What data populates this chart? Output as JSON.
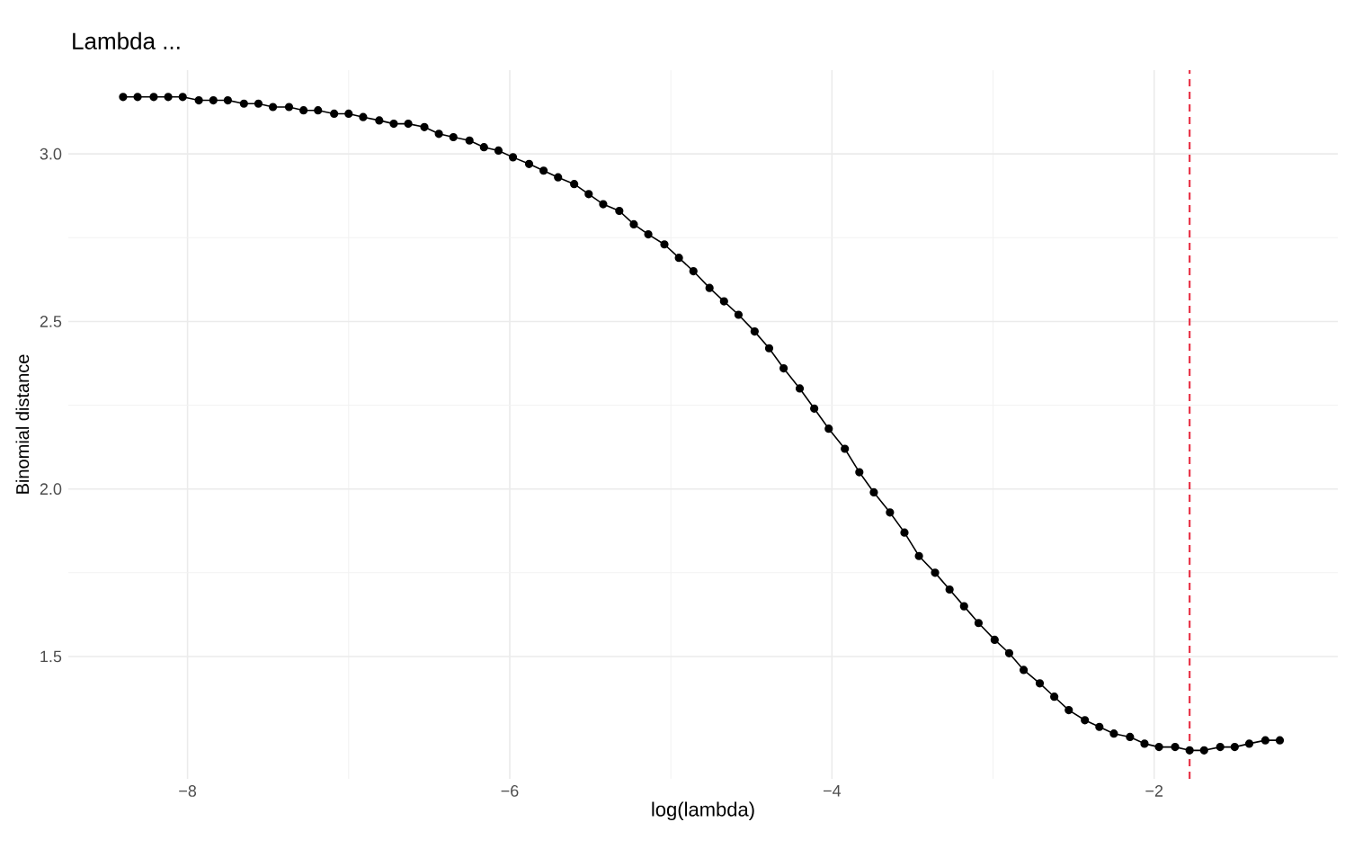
{
  "chart_data": {
    "type": "line",
    "title": "Lambda ...",
    "xlabel": "log(lambda)",
    "ylabel": "Binomial distance",
    "x": [
      -8.4,
      -8.31,
      -8.21,
      -8.12,
      -8.03,
      -7.93,
      -7.84,
      -7.75,
      -7.65,
      -7.56,
      -7.47,
      -7.37,
      -7.28,
      -7.19,
      -7.09,
      -7.0,
      -6.91,
      -6.81,
      -6.72,
      -6.63,
      -6.53,
      -6.44,
      -6.35,
      -6.25,
      -6.16,
      -6.07,
      -5.98,
      -5.88,
      -5.79,
      -5.7,
      -5.6,
      -5.51,
      -5.42,
      -5.32,
      -5.23,
      -5.14,
      -5.04,
      -4.95,
      -4.86,
      -4.76,
      -4.67,
      -4.58,
      -4.48,
      -4.39,
      -4.3,
      -4.2,
      -4.11,
      -4.02,
      -3.92,
      -3.83,
      -3.74,
      -3.64,
      -3.55,
      -3.46,
      -3.36,
      -3.27,
      -3.18,
      -3.09,
      -2.99,
      -2.9,
      -2.81,
      -2.71,
      -2.62,
      -2.53,
      -2.43,
      -2.34,
      -2.25,
      -2.15,
      -2.06,
      -1.97,
      -1.87,
      -1.78,
      -1.69,
      -1.59,
      -1.5,
      -1.41,
      -1.31,
      -1.22
    ],
    "series": [
      {
        "color": "#000000",
        "values": [
          3.17,
          3.17,
          3.17,
          3.17,
          3.17,
          3.16,
          3.16,
          3.16,
          3.15,
          3.15,
          3.14,
          3.14,
          3.13,
          3.13,
          3.12,
          3.12,
          3.11,
          3.1,
          3.09,
          3.09,
          3.08,
          3.06,
          3.05,
          3.04,
          3.02,
          3.01,
          2.99,
          2.97,
          2.95,
          2.93,
          2.91,
          2.88,
          2.85,
          2.83,
          2.79,
          2.76,
          2.73,
          2.69,
          2.65,
          2.6,
          2.56,
          2.52,
          2.47,
          2.42,
          2.36,
          2.3,
          2.24,
          2.18,
          2.12,
          2.05,
          1.99,
          1.93,
          1.87,
          1.8,
          1.75,
          1.7,
          1.65,
          1.6,
          1.55,
          1.51,
          1.46,
          1.42,
          1.38,
          1.34,
          1.31,
          1.29,
          1.27,
          1.26,
          1.24,
          1.23,
          1.23,
          1.22,
          1.22,
          1.23,
          1.23,
          1.24,
          1.25,
          1.25
        ]
      }
    ],
    "xlim": [
      -8.74,
      -0.86
    ],
    "ylim": [
      1.135,
      3.25
    ],
    "xticks": [
      {
        "value": -8,
        "label": "−8"
      },
      {
        "value": -6,
        "label": "−6"
      },
      {
        "value": -4,
        "label": "−4"
      },
      {
        "value": -2,
        "label": "−2"
      }
    ],
    "yticks": [
      1.5,
      {
        "value": 2,
        "label": "2.0"
      },
      2.5,
      {
        "value": 3,
        "label": "3.0"
      }
    ],
    "grid": true,
    "marker": "circle",
    "line_style": "solid",
    "ref_lines": [
      {
        "axis": "x",
        "value": -1.78,
        "color": "#e8364a",
        "line_style": "dashed"
      }
    ]
  }
}
